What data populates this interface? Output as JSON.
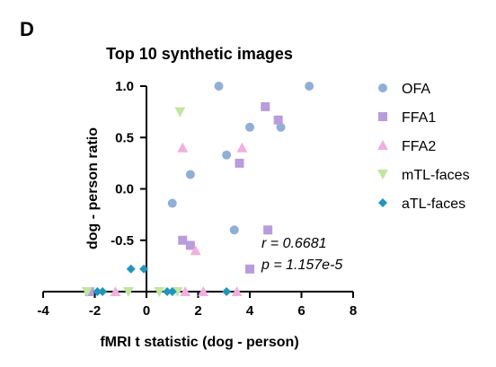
{
  "panel_label": "D",
  "chart_data": {
    "type": "scatter",
    "title": "Top 10 synthetic images",
    "xlabel": "fMRI t statistic (dog - person)",
    "ylabel": "dog - person ratio",
    "xlim": [
      -4,
      8
    ],
    "ylim": [
      -1.0,
      1.0
    ],
    "xticks": [
      "-4",
      "-2",
      "0",
      "2",
      "4",
      "6",
      "8"
    ],
    "yticks": [
      "1.0",
      "0.5",
      "0.0",
      "-0.5"
    ],
    "grid": false,
    "legend_position": "right",
    "annotations": [
      "r = 0.6681",
      "p = 1.157e-5"
    ],
    "series": [
      {
        "name": "OFA",
        "marker": "circle",
        "color": "#8fb0d6",
        "points": [
          [
            2.8,
            1.0
          ],
          [
            6.3,
            1.0
          ],
          [
            4.0,
            0.6
          ],
          [
            5.2,
            0.6
          ],
          [
            3.1,
            0.33
          ],
          [
            1.7,
            0.14
          ],
          [
            1.0,
            -0.14
          ],
          [
            3.4,
            -0.4
          ]
        ]
      },
      {
        "name": "FFA1",
        "marker": "square",
        "color": "#b99cdc",
        "points": [
          [
            4.6,
            0.8
          ],
          [
            5.1,
            0.67
          ],
          [
            3.6,
            0.25
          ],
          [
            4.7,
            -0.4
          ],
          [
            1.4,
            -0.5
          ],
          [
            1.7,
            -0.55
          ],
          [
            4.0,
            -0.78
          ],
          [
            -2.2,
            -1.0
          ]
        ]
      },
      {
        "name": "FFA2",
        "marker": "triangle-up",
        "color": "#f2b0de",
        "points": [
          [
            3.7,
            0.4
          ],
          [
            1.4,
            0.4
          ],
          [
            1.9,
            -0.6
          ],
          [
            2.2,
            -1.0
          ],
          [
            1.5,
            -1.0
          ],
          [
            -1.2,
            -1.0
          ],
          [
            3.5,
            -1.0
          ]
        ]
      },
      {
        "name": "mTL-faces",
        "marker": "triangle-down",
        "color": "#c2e5a0",
        "points": [
          [
            1.3,
            0.75
          ],
          [
            -2.3,
            -1.0
          ],
          [
            -0.7,
            -1.0
          ],
          [
            0.5,
            -1.0
          ],
          [
            1.2,
            -1.0
          ]
        ]
      },
      {
        "name": "aTL-faces",
        "marker": "diamond",
        "color": "#1f96bd",
        "points": [
          [
            -0.6,
            -0.78
          ],
          [
            -0.1,
            -0.78
          ],
          [
            -1.9,
            -1.0
          ],
          [
            -1.7,
            -1.0
          ],
          [
            0.8,
            -1.0
          ],
          [
            1.0,
            -1.0
          ],
          [
            3.1,
            -1.0
          ]
        ]
      }
    ]
  }
}
